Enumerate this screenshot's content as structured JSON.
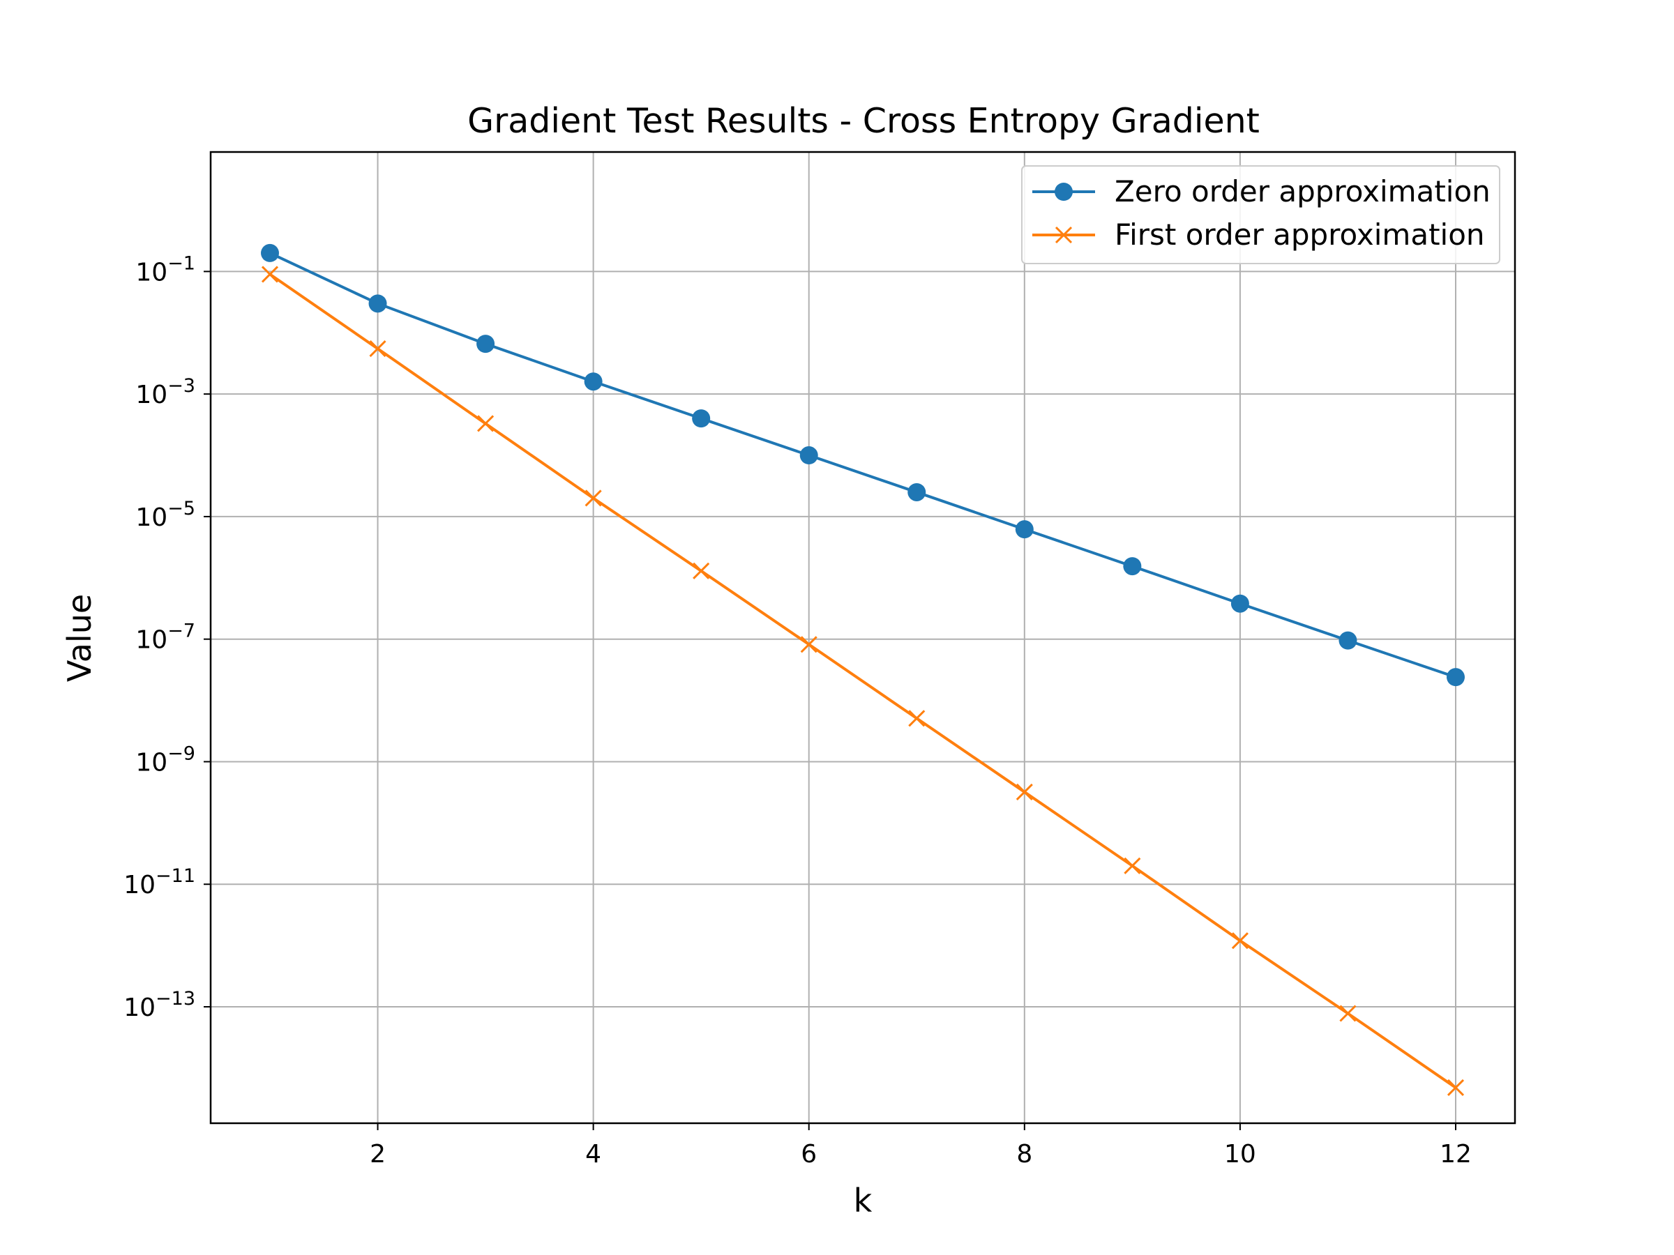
{
  "chart_data": {
    "type": "line",
    "title": "Gradient Test Results - Cross Entropy Gradient",
    "xlabel": "k",
    "ylabel": "Value",
    "yscale": "log",
    "xlim": [
      0.45,
      12.55
    ],
    "ylim_log10": [
      -14.9,
      0.95
    ],
    "x_ticks": [
      2,
      4,
      6,
      8,
      10,
      12
    ],
    "y_ticks": [
      {
        "exp": -1,
        "base": "10",
        "sup": "−1"
      },
      {
        "exp": -3,
        "base": "10",
        "sup": "−3"
      },
      {
        "exp": -5,
        "base": "10",
        "sup": "−5"
      },
      {
        "exp": -7,
        "base": "10",
        "sup": "−7"
      },
      {
        "exp": -9,
        "base": "10",
        "sup": "−9"
      },
      {
        "exp": -11,
        "base": "10",
        "sup": "−11"
      },
      {
        "exp": -13,
        "base": "10",
        "sup": "−13"
      }
    ],
    "grid": true,
    "legend_position": "top-right",
    "x": [
      1,
      2,
      3,
      4,
      5,
      6,
      7,
      8,
      9,
      10,
      11,
      12
    ],
    "series": [
      {
        "name": "Zero order approximation",
        "color": "#1f77b4",
        "marker": "circle",
        "values": [
          0.2,
          0.03,
          0.0066,
          0.0016,
          0.0004,
          0.0001,
          2.5e-05,
          6.2e-06,
          1.55e-06,
          3.8e-07,
          9.5e-08,
          2.4e-08
        ]
      },
      {
        "name": "First order approximation",
        "color": "#ff7f0e",
        "marker": "x",
        "values": [
          0.09,
          0.0055,
          0.00033,
          2e-05,
          1.3e-06,
          8.2e-08,
          5.1e-09,
          3.2e-10,
          2e-11,
          1.2e-12,
          7.8e-14,
          4.8e-15
        ]
      }
    ]
  }
}
